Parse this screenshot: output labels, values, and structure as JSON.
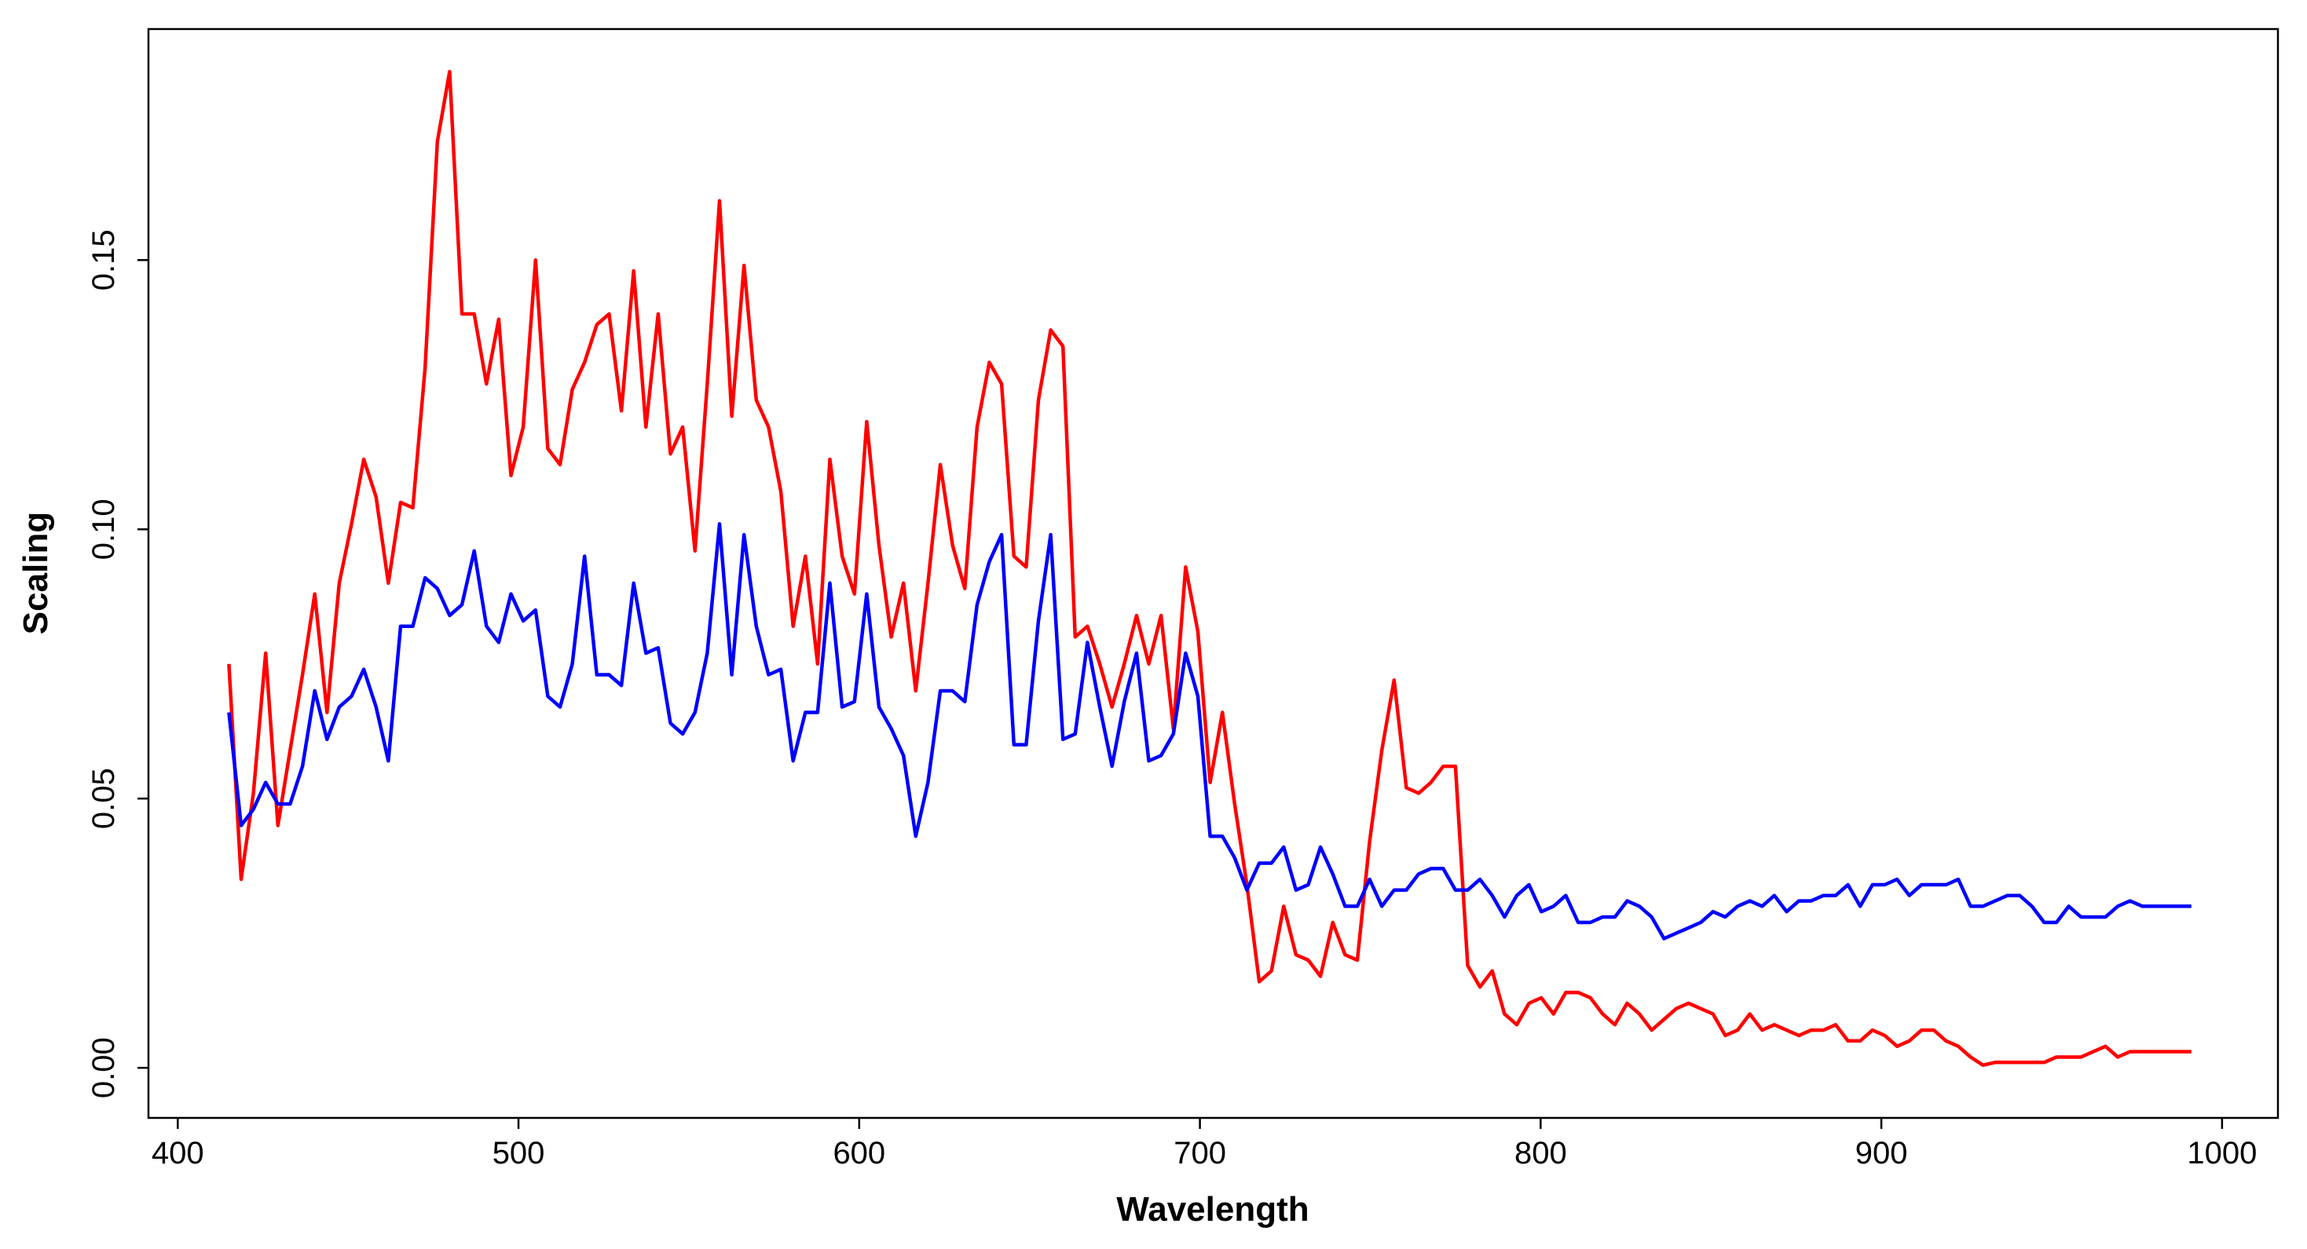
{
  "chart_data": {
    "type": "line",
    "x_label": "Wavelength",
    "y_label": "Scaling",
    "x": [
      415,
      418.6,
      422.2,
      425.8,
      429.4,
      433,
      436.6,
      440.2,
      443.8,
      447.4,
      451,
      454.6,
      458.2,
      461.8,
      465.4,
      469,
      472.6,
      476.2,
      479.8,
      483.4,
      487,
      490.6,
      494.2,
      497.8,
      501.4,
      505,
      508.6,
      512.2,
      515.8,
      519.4,
      523,
      526.6,
      530.2,
      533.8,
      537.4,
      541,
      544.6,
      548.2,
      551.8,
      555.4,
      559,
      562.6,
      566.2,
      569.8,
      573.4,
      577,
      580.6,
      584.2,
      587.8,
      591.4,
      595,
      598.6,
      602.2,
      605.8,
      609.4,
      613,
      616.6,
      620.2,
      623.8,
      627.4,
      631,
      634.6,
      638.2,
      641.8,
      645.4,
      649,
      652.6,
      656.2,
      659.8,
      663.4,
      667,
      670.6,
      674.2,
      677.8,
      681.4,
      685,
      688.6,
      692.2,
      695.8,
      699.4,
      703,
      706.6,
      710.2,
      713.8,
      717.4,
      721,
      724.6,
      728.2,
      731.8,
      735.4,
      739,
      742.6,
      746.2,
      749.8,
      753.4,
      757,
      760.6,
      764.2,
      767.8,
      771.4,
      775,
      778.6,
      782.2,
      785.8,
      789.4,
      793,
      796.6,
      800.2,
      803.8,
      807.4,
      811,
      814.6,
      818.2,
      821.8,
      825.4,
      829,
      832.6,
      836.2,
      839.8,
      843.4,
      847,
      850.6,
      854.2,
      857.8,
      861.4,
      865,
      868.6,
      872.2,
      875.8,
      879.4,
      883,
      886.6,
      890.2,
      893.8,
      897.4,
      901,
      904.6,
      908.2,
      911.8,
      915.4,
      919,
      922.6,
      926.2,
      929.8,
      933.4,
      937,
      940.6,
      944.2,
      947.8,
      951.4,
      955,
      958.6,
      962.2,
      965.8,
      969.4,
      973,
      976.6,
      980.2,
      983.8,
      987.4,
      991
    ],
    "series": [
      {
        "color": "#ff0000",
        "values": [
          0.075,
          0.035,
          0.051,
          0.077,
          0.045,
          0.059,
          0.073,
          0.088,
          0.066,
          0.09,
          0.101,
          0.113,
          0.106,
          0.09,
          0.105,
          0.104,
          0.13,
          0.172,
          0.185,
          0.14,
          0.14,
          0.127,
          0.139,
          0.11,
          0.119,
          0.15,
          0.115,
          0.112,
          0.126,
          0.131,
          0.138,
          0.14,
          0.122,
          0.148,
          0.119,
          0.14,
          0.114,
          0.119,
          0.096,
          0.127,
          0.161,
          0.121,
          0.149,
          0.124,
          0.119,
          0.107,
          0.082,
          0.095,
          0.075,
          0.113,
          0.095,
          0.088,
          0.12,
          0.097,
          0.08,
          0.09,
          0.07,
          0.09,
          0.112,
          0.097,
          0.089,
          0.119,
          0.131,
          0.127,
          0.095,
          0.093,
          0.124,
          0.137,
          0.134,
          0.08,
          0.082,
          0.075,
          0.067,
          0.075,
          0.084,
          0.075,
          0.084,
          0.063,
          0.093,
          0.081,
          0.053,
          0.066,
          0.049,
          0.034,
          0.016,
          0.018,
          0.03,
          0.021,
          0.02,
          0.017,
          0.027,
          0.021,
          0.02,
          0.042,
          0.059,
          0.072,
          0.052,
          0.051,
          0.053,
          0.056,
          0.056,
          0.019,
          0.015,
          0.018,
          0.01,
          0.008,
          0.012,
          0.013,
          0.01,
          0.014,
          0.014,
          0.013,
          0.01,
          0.008,
          0.012,
          0.01,
          0.007,
          0.009,
          0.011,
          0.012,
          0.011,
          0.01,
          0.006,
          0.007,
          0.01,
          0.007,
          0.008,
          0.007,
          0.006,
          0.007,
          0.007,
          0.008,
          0.005,
          0.005,
          0.007,
          0.006,
          0.004,
          0.005,
          0.007,
          0.007,
          0.005,
          0.004,
          0.002,
          0.0005,
          0.001,
          0.001,
          0.001,
          0.001,
          0.001,
          0.002,
          0.002,
          0.002,
          0.003,
          0.004,
          0.002,
          0.003,
          0.003,
          0.003,
          0.003,
          0.003,
          0.003
        ]
      },
      {
        "color": "#0000ff",
        "values": [
          0.066,
          0.045,
          0.048,
          0.053,
          0.049,
          0.049,
          0.056,
          0.07,
          0.061,
          0.067,
          0.069,
          0.074,
          0.067,
          0.057,
          0.082,
          0.082,
          0.091,
          0.089,
          0.084,
          0.086,
          0.096,
          0.082,
          0.079,
          0.088,
          0.083,
          0.085,
          0.069,
          0.067,
          0.075,
          0.095,
          0.073,
          0.073,
          0.071,
          0.09,
          0.077,
          0.078,
          0.064,
          0.062,
          0.066,
          0.077,
          0.101,
          0.073,
          0.099,
          0.082,
          0.073,
          0.074,
          0.057,
          0.066,
          0.066,
          0.09,
          0.067,
          0.068,
          0.088,
          0.067,
          0.063,
          0.058,
          0.043,
          0.053,
          0.07,
          0.07,
          0.068,
          0.086,
          0.094,
          0.099,
          0.06,
          0.06,
          0.083,
          0.099,
          0.061,
          0.062,
          0.079,
          0.067,
          0.056,
          0.068,
          0.077,
          0.057,
          0.058,
          0.062,
          0.077,
          0.069,
          0.043,
          0.043,
          0.039,
          0.033,
          0.038,
          0.038,
          0.041,
          0.033,
          0.034,
          0.041,
          0.036,
          0.03,
          0.03,
          0.035,
          0.03,
          0.033,
          0.033,
          0.036,
          0.037,
          0.037,
          0.033,
          0.033,
          0.035,
          0.032,
          0.028,
          0.032,
          0.034,
          0.029,
          0.03,
          0.032,
          0.027,
          0.027,
          0.028,
          0.028,
          0.031,
          0.03,
          0.028,
          0.024,
          0.025,
          0.026,
          0.027,
          0.029,
          0.028,
          0.03,
          0.031,
          0.03,
          0.032,
          0.029,
          0.031,
          0.031,
          0.032,
          0.032,
          0.034,
          0.03,
          0.034,
          0.034,
          0.035,
          0.032,
          0.034,
          0.034,
          0.034,
          0.035,
          0.03,
          0.03,
          0.031,
          0.032,
          0.032,
          0.03,
          0.027,
          0.027,
          0.03,
          0.028,
          0.028,
          0.028,
          0.03,
          0.031,
          0.03,
          0.03,
          0.03,
          0.03,
          0.03
        ]
      }
    ],
    "xlim": [
      391.4,
      1016.4
    ],
    "ylim": [
      -0.0093,
      0.1929
    ],
    "xticks": [
      400,
      500,
      600,
      700,
      800,
      900,
      1000
    ],
    "yticks": [
      {
        "value": 0,
        "label": "0.00"
      },
      0.05,
      {
        "value": 0.1,
        "label": "0.10"
      },
      0.15
    ]
  }
}
